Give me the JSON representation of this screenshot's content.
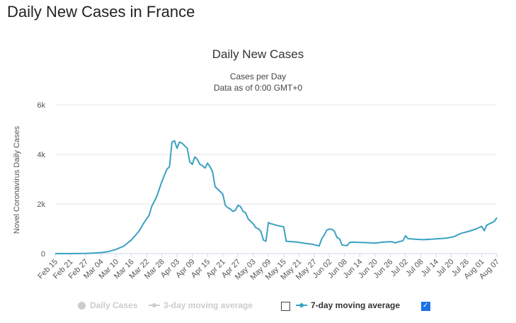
{
  "page": {
    "heading": "Daily New Cases in France"
  },
  "chart_data": {
    "type": "line",
    "title": "Daily New Cases",
    "subtitle_1": "Cases per Day",
    "subtitle_2": "Data as of 0:00 GMT+0",
    "ylabel": "Novel Coronavirus Daily Cases",
    "xlabel": "",
    "ylim": [
      0,
      6000
    ],
    "yticks": [
      0,
      2000,
      4000,
      6000
    ],
    "ytick_labels": [
      "0",
      "2k",
      "4k",
      "6k"
    ],
    "x_start": "Feb 15",
    "x_end": "Aug 07",
    "x_ticks": [
      "Feb 15",
      "Feb 21",
      "Feb 27",
      "Mar 04",
      "Mar 10",
      "Mar 16",
      "Mar 22",
      "Mar 28",
      "Apr 03",
      "Apr 09",
      "Apr 15",
      "Apr 21",
      "Apr 27",
      "May 03",
      "May 09",
      "May 15",
      "May 21",
      "May 27",
      "Jun 02",
      "Jun 08",
      "Jun 14",
      "Jun 20",
      "Jun 26",
      "Jul 02",
      "Jul 08",
      "Jul 14",
      "Jul 20",
      "Jul 26",
      "Aug 01",
      "Aug 07"
    ],
    "grid": true,
    "series": [
      {
        "name": "7-day moving average",
        "color": "#3ba1c2",
        "points": [
          [
            "Feb 15",
            0
          ],
          [
            "Feb 21",
            0
          ],
          [
            "Feb 27",
            5
          ],
          [
            "Mar 01",
            20
          ],
          [
            "Mar 04",
            40
          ],
          [
            "Mar 07",
            80
          ],
          [
            "Mar 10",
            170
          ],
          [
            "Mar 13",
            300
          ],
          [
            "Mar 16",
            550
          ],
          [
            "Mar 19",
            900
          ],
          [
            "Mar 21",
            1250
          ],
          [
            "Mar 23",
            1550
          ],
          [
            "Mar 24",
            1900
          ],
          [
            "Mar 26",
            2300
          ],
          [
            "Mar 28",
            2900
          ],
          [
            "Mar 30",
            3400
          ],
          [
            "Mar 31",
            3500
          ],
          [
            "Apr 01",
            4500
          ],
          [
            "Apr 02",
            4550
          ],
          [
            "Apr 03",
            4250
          ],
          [
            "Apr 04",
            4500
          ],
          [
            "Apr 05",
            4450
          ],
          [
            "Apr 06",
            4350
          ],
          [
            "Apr 07",
            4250
          ],
          [
            "Apr 08",
            3700
          ],
          [
            "Apr 09",
            3600
          ],
          [
            "Apr 10",
            3900
          ],
          [
            "Apr 11",
            3800
          ],
          [
            "Apr 12",
            3600
          ],
          [
            "Apr 13",
            3550
          ],
          [
            "Apr 14",
            3450
          ],
          [
            "Apr 15",
            3650
          ],
          [
            "Apr 16",
            3500
          ],
          [
            "Apr 17",
            3300
          ],
          [
            "Apr 18",
            2700
          ],
          [
            "Apr 19",
            2600
          ],
          [
            "Apr 20",
            2500
          ],
          [
            "Apr 21",
            2400
          ],
          [
            "Apr 22",
            1950
          ],
          [
            "Apr 23",
            1850
          ],
          [
            "Apr 24",
            1800
          ],
          [
            "Apr 25",
            1700
          ],
          [
            "Apr 26",
            1750
          ],
          [
            "Apr 27",
            1950
          ],
          [
            "Apr 28",
            1900
          ],
          [
            "Apr 29",
            1700
          ],
          [
            "Apr 30",
            1650
          ],
          [
            "May 01",
            1400
          ],
          [
            "May 02",
            1300
          ],
          [
            "May 03",
            1200
          ],
          [
            "May 04",
            1050
          ],
          [
            "May 05",
            1000
          ],
          [
            "May 06",
            900
          ],
          [
            "May 07",
            550
          ],
          [
            "May 08",
            500
          ],
          [
            "May 09",
            1250
          ],
          [
            "May 10",
            1200
          ],
          [
            "May 11",
            1180
          ],
          [
            "May 12",
            1150
          ],
          [
            "May 13",
            1120
          ],
          [
            "May 14",
            1100
          ],
          [
            "May 15",
            1080
          ],
          [
            "May 16",
            500
          ],
          [
            "May 17",
            490
          ],
          [
            "May 20",
            470
          ],
          [
            "May 23",
            420
          ],
          [
            "May 26",
            380
          ],
          [
            "May 28",
            330
          ],
          [
            "May 29",
            310
          ],
          [
            "May 30",
            600
          ],
          [
            "May 31",
            750
          ],
          [
            "Jun 01",
            950
          ],
          [
            "Jun 02",
            990
          ],
          [
            "Jun 03",
            980
          ],
          [
            "Jun 04",
            900
          ],
          [
            "Jun 05",
            650
          ],
          [
            "Jun 06",
            600
          ],
          [
            "Jun 07",
            350
          ],
          [
            "Jun 08",
            330
          ],
          [
            "Jun 09",
            320
          ],
          [
            "Jun 10",
            450
          ],
          [
            "Jun 11",
            460
          ],
          [
            "Jun 14",
            450
          ],
          [
            "Jun 17",
            440
          ],
          [
            "Jun 20",
            420
          ],
          [
            "Jun 23",
            460
          ],
          [
            "Jun 26",
            480
          ],
          [
            "Jun 27",
            470
          ],
          [
            "Jun 28",
            430
          ],
          [
            "Jun 29",
            470
          ],
          [
            "Jul 01",
            520
          ],
          [
            "Jul 02",
            720
          ],
          [
            "Jul 03",
            600
          ],
          [
            "Jul 06",
            580
          ],
          [
            "Jul 09",
            560
          ],
          [
            "Jul 12",
            580
          ],
          [
            "Jul 15",
            600
          ],
          [
            "Jul 18",
            620
          ],
          [
            "Jul 21",
            680
          ],
          [
            "Jul 24",
            820
          ],
          [
            "Jul 27",
            900
          ],
          [
            "Jul 30",
            1000
          ],
          [
            "Aug 01",
            1100
          ],
          [
            "Aug 02",
            920
          ],
          [
            "Aug 03",
            1150
          ],
          [
            "Aug 05",
            1250
          ],
          [
            "Aug 06",
            1300
          ],
          [
            "Aug 07",
            1450
          ]
        ]
      }
    ]
  },
  "legend": {
    "items": [
      {
        "label": "Daily Cases",
        "enabled": false
      },
      {
        "label": "3-day moving average",
        "enabled": false,
        "checked": false
      },
      {
        "label": "7-day moving average",
        "enabled": true,
        "checked": true
      }
    ]
  },
  "colors": {
    "series_line": "#3ba1c2",
    "legend_disabled": "#cccccc",
    "checkbox_checked": "#1a73e8"
  }
}
